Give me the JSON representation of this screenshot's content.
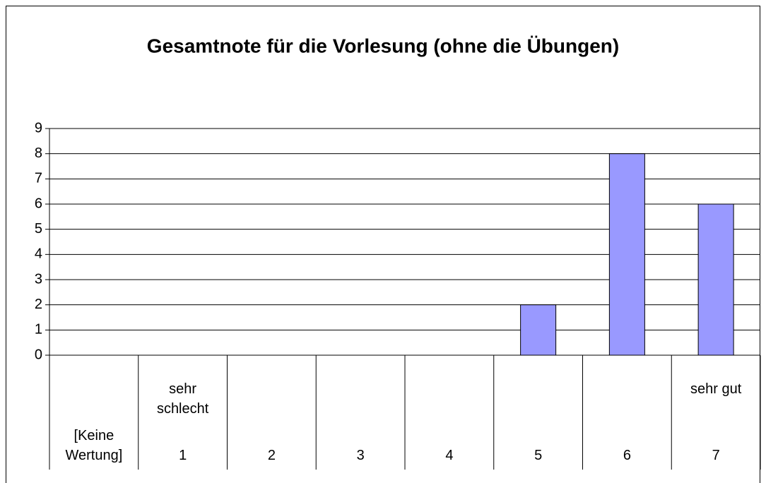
{
  "chart_data": {
    "type": "bar",
    "title": "Gesamtnote für die Vorlesung (ohne die Übungen)",
    "categories": [
      "[Keine Wertung]",
      "1",
      "2",
      "3",
      "4",
      "5",
      "6",
      "7"
    ],
    "category_groups": [
      null,
      "sehr schlecht",
      null,
      null,
      null,
      null,
      null,
      "sehr gut"
    ],
    "values": [
      0,
      0,
      0,
      0,
      0,
      2,
      8,
      6
    ],
    "color": "#9999ff",
    "ylim": [
      0,
      9
    ],
    "yticks": [
      0,
      1,
      2,
      3,
      4,
      5,
      6,
      7,
      8,
      9
    ],
    "grid": true
  }
}
